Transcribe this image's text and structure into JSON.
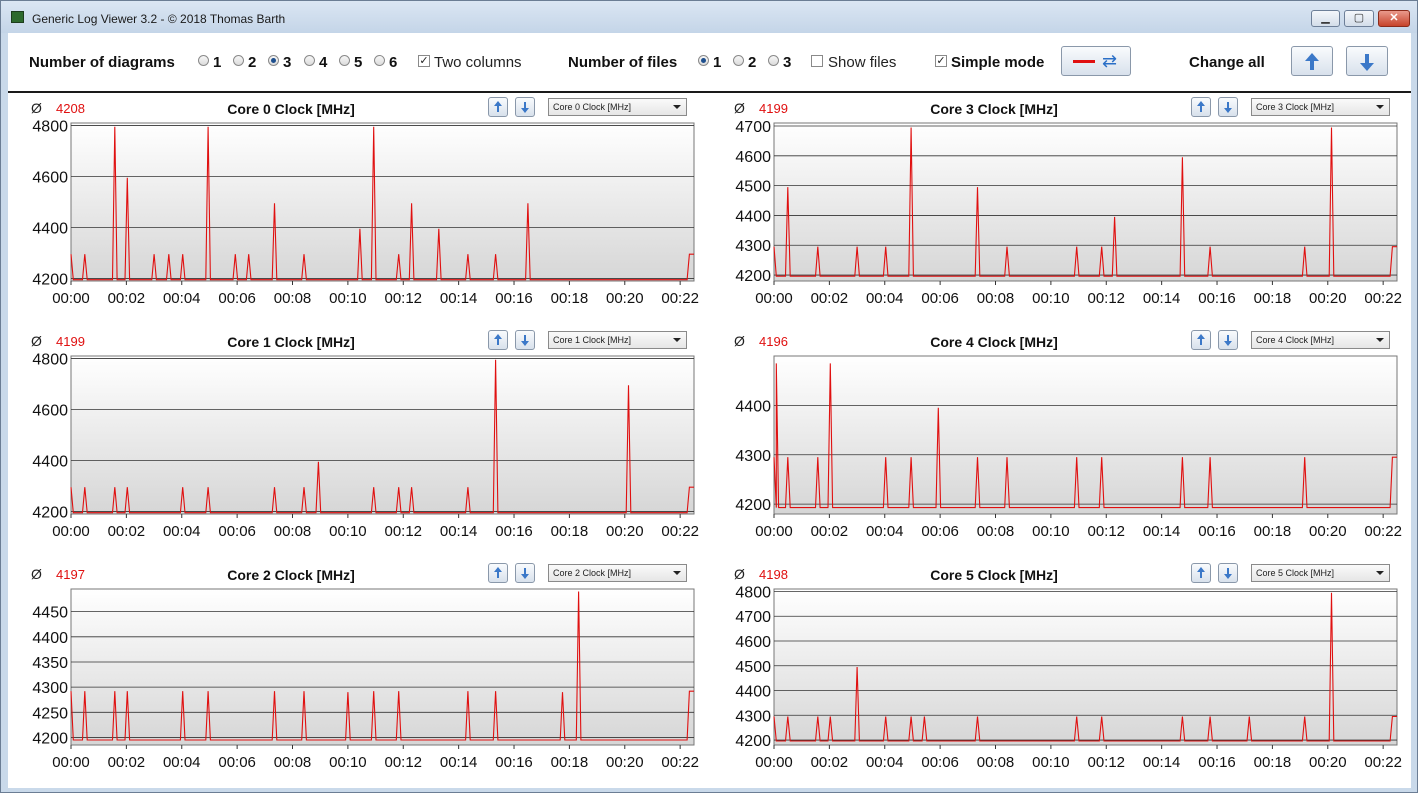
{
  "window": {
    "title": "Generic Log Viewer 3.2 - © 2018 Thomas Barth",
    "minimize": "▁",
    "maximize": "▢",
    "close": "✕"
  },
  "toolbar": {
    "diagrams_label": "Number of diagrams",
    "diagram_options": [
      "1",
      "2",
      "3",
      "4",
      "5",
      "6"
    ],
    "diagram_selected": "3",
    "two_columns_label": "Two columns",
    "two_columns_checked": true,
    "files_label": "Number of files",
    "file_options": [
      "1",
      "2",
      "3"
    ],
    "file_selected": "1",
    "show_files_label": "Show files",
    "show_files_checked": false,
    "simple_mode_label": "Simple mode",
    "simple_mode_checked": true,
    "change_all_label": "Change all"
  },
  "colors": {
    "series": "#e01010",
    "grid": "#333333"
  },
  "panels": [
    {
      "avg_symbol": "Ø",
      "avg": "4208",
      "title": "Core 0 Clock [MHz]",
      "select": "Core 0 Clock [MHz]"
    },
    {
      "avg_symbol": "Ø",
      "avg": "4199",
      "title": "Core 3 Clock [MHz]",
      "select": "Core 3 Clock [MHz]"
    },
    {
      "avg_symbol": "Ø",
      "avg": "4199",
      "title": "Core 1 Clock [MHz]",
      "select": "Core 1 Clock [MHz]"
    },
    {
      "avg_symbol": "Ø",
      "avg": "4196",
      "title": "Core 4 Clock [MHz]",
      "select": "Core 4 Clock [MHz]"
    },
    {
      "avg_symbol": "Ø",
      "avg": "4197",
      "title": "Core 2 Clock [MHz]",
      "select": "Core 2 Clock [MHz]"
    },
    {
      "avg_symbol": "Ø",
      "avg": "4198",
      "title": "Core 5 Clock [MHz]",
      "select": "Core 5 Clock [MHz]"
    }
  ],
  "chart_data": [
    {
      "type": "line",
      "title": "Core 0 Clock [MHz]",
      "ylim": [
        4190,
        4810
      ],
      "yticks": [
        4200,
        4400,
        4600,
        4800
      ],
      "xticks": [
        "00:00",
        "00:02",
        "00:04",
        "00:06",
        "00:08",
        "00:10",
        "00:12",
        "00:14",
        "00:16",
        "00:18",
        "00:20",
        "00:22"
      ],
      "xlim": [
        0,
        1350
      ],
      "baseline": 4195,
      "start": 4295,
      "end": 4295,
      "spikes": [
        [
          30,
          4295
        ],
        [
          95,
          4795
        ],
        [
          122,
          4595
        ],
        [
          180,
          4295
        ],
        [
          212,
          4295
        ],
        [
          242,
          4295
        ],
        [
          297,
          4795
        ],
        [
          356,
          4295
        ],
        [
          385,
          4295
        ],
        [
          441,
          4495
        ],
        [
          505,
          4295
        ],
        [
          626,
          4395
        ],
        [
          656,
          4795
        ],
        [
          710,
          4295
        ],
        [
          738,
          4495
        ],
        [
          797,
          4395
        ],
        [
          860,
          4295
        ],
        [
          920,
          4295
        ],
        [
          990,
          4495
        ]
      ]
    },
    {
      "type": "line",
      "title": "Core 3 Clock [MHz]",
      "ylim": [
        4180,
        4710
      ],
      "yticks": [
        4200,
        4300,
        4400,
        4500,
        4600,
        4700
      ],
      "xticks": [
        "00:00",
        "00:02",
        "00:04",
        "00:06",
        "00:08",
        "00:10",
        "00:12",
        "00:14",
        "00:16",
        "00:18",
        "00:20",
        "00:22"
      ],
      "xlim": [
        0,
        1350
      ],
      "baseline": 4196,
      "start": 4295,
      "end": 4295,
      "spikes": [
        [
          30,
          4495
        ],
        [
          95,
          4295
        ],
        [
          180,
          4295
        ],
        [
          242,
          4295
        ],
        [
          297,
          4695
        ],
        [
          441,
          4495
        ],
        [
          505,
          4295
        ],
        [
          656,
          4295
        ],
        [
          710,
          4295
        ],
        [
          738,
          4395
        ],
        [
          885,
          4595
        ],
        [
          945,
          4295
        ],
        [
          1150,
          4295
        ],
        [
          1208,
          4695
        ]
      ]
    },
    {
      "type": "line",
      "title": "Core 1 Clock [MHz]",
      "ylim": [
        4190,
        4810
      ],
      "yticks": [
        4200,
        4400,
        4600,
        4800
      ],
      "xticks": [
        "00:00",
        "00:02",
        "00:04",
        "00:06",
        "00:08",
        "00:10",
        "00:12",
        "00:14",
        "00:16",
        "00:18",
        "00:20",
        "00:22"
      ],
      "xlim": [
        0,
        1350
      ],
      "baseline": 4195,
      "start": 4295,
      "end": 4295,
      "spikes": [
        [
          30,
          4295
        ],
        [
          95,
          4295
        ],
        [
          122,
          4295
        ],
        [
          242,
          4295
        ],
        [
          297,
          4295
        ],
        [
          441,
          4295
        ],
        [
          505,
          4295
        ],
        [
          536,
          4395
        ],
        [
          656,
          4295
        ],
        [
          710,
          4295
        ],
        [
          738,
          4295
        ],
        [
          860,
          4295
        ],
        [
          920,
          4795
        ],
        [
          1208,
          4695
        ]
      ]
    },
    {
      "type": "line",
      "title": "Core 4 Clock [MHz]",
      "ylim": [
        4180,
        4500
      ],
      "yticks": [
        4200,
        4300,
        4400
      ],
      "xticks": [
        "00:00",
        "00:02",
        "00:04",
        "00:06",
        "00:08",
        "00:10",
        "00:12",
        "00:14",
        "00:16",
        "00:18",
        "00:20",
        "00:22"
      ],
      "xlim": [
        0,
        1350
      ],
      "baseline": 4193,
      "start": 4295,
      "end": 4295,
      "spikes": [
        [
          5,
          4485
        ],
        [
          30,
          4295
        ],
        [
          95,
          4295
        ],
        [
          122,
          4485
        ],
        [
          242,
          4295
        ],
        [
          297,
          4295
        ],
        [
          356,
          4395
        ],
        [
          441,
          4295
        ],
        [
          505,
          4295
        ],
        [
          656,
          4295
        ],
        [
          710,
          4295
        ],
        [
          885,
          4295
        ],
        [
          945,
          4295
        ],
        [
          1150,
          4295
        ]
      ]
    },
    {
      "type": "line",
      "title": "Core 2 Clock [MHz]",
      "ylim": [
        4185,
        4495
      ],
      "yticks": [
        4200,
        4250,
        4300,
        4350,
        4400,
        4450
      ],
      "xticks": [
        "00:00",
        "00:02",
        "00:04",
        "00:06",
        "00:08",
        "00:10",
        "00:12",
        "00:14",
        "00:16",
        "00:18",
        "00:20",
        "00:22"
      ],
      "xlim": [
        0,
        1350
      ],
      "baseline": 4195,
      "start": 4292,
      "end": 4292,
      "spikes": [
        [
          30,
          4292
        ],
        [
          95,
          4292
        ],
        [
          122,
          4292
        ],
        [
          242,
          4292
        ],
        [
          297,
          4292
        ],
        [
          441,
          4292
        ],
        [
          505,
          4292
        ],
        [
          600,
          4290
        ],
        [
          656,
          4292
        ],
        [
          710,
          4292
        ],
        [
          860,
          4292
        ],
        [
          920,
          4292
        ],
        [
          1065,
          4290
        ],
        [
          1100,
          4490
        ]
      ]
    },
    {
      "type": "line",
      "title": "Core 5 Clock [MHz]",
      "ylim": [
        4180,
        4810
      ],
      "yticks": [
        4200,
        4300,
        4400,
        4500,
        4600,
        4700,
        4800
      ],
      "xticks": [
        "00:00",
        "00:02",
        "00:04",
        "00:06",
        "00:08",
        "00:10",
        "00:12",
        "00:14",
        "00:16",
        "00:18",
        "00:20",
        "00:22"
      ],
      "xlim": [
        0,
        1350
      ],
      "baseline": 4196,
      "start": 4295,
      "end": 4295,
      "spikes": [
        [
          30,
          4295
        ],
        [
          95,
          4295
        ],
        [
          122,
          4295
        ],
        [
          180,
          4495
        ],
        [
          242,
          4295
        ],
        [
          297,
          4295
        ],
        [
          326,
          4295
        ],
        [
          441,
          4295
        ],
        [
          656,
          4295
        ],
        [
          710,
          4295
        ],
        [
          885,
          4295
        ],
        [
          945,
          4295
        ],
        [
          1030,
          4295
        ],
        [
          1150,
          4295
        ],
        [
          1208,
          4795
        ]
      ]
    }
  ]
}
